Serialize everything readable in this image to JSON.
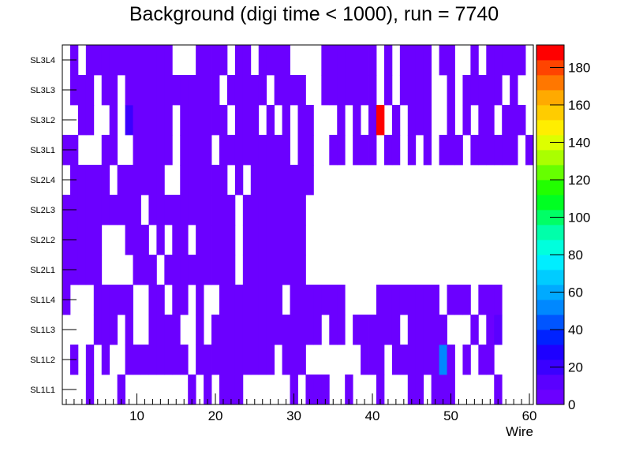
{
  "chart_data": {
    "type": "heatmap",
    "title": "Background (digi time < 1000), run = 7740",
    "xlabel": "Wire",
    "ylabel": "",
    "x_ticks": [
      10,
      20,
      30,
      40,
      50,
      60
    ],
    "xlim": [
      0.5,
      60.5
    ],
    "y_categories": [
      "SL1L1",
      "SL1L2",
      "SL1L3",
      "SL1L4",
      "SL2L1",
      "SL2L2",
      "SL2L3",
      "SL2L4",
      "SL3L1",
      "SL3L2",
      "SL3L3",
      "SL3L4"
    ],
    "z_ticks": [
      0,
      20,
      40,
      60,
      80,
      100,
      120,
      140,
      160,
      180
    ],
    "zlim": [
      0,
      192
    ],
    "palette": [
      "#6b00ff",
      "#5a00ff",
      "#3a00ff",
      "#1e00ff",
      "#0022ff",
      "#0055ff",
      "#0088ff",
      "#00aaff",
      "#00ccff",
      "#00eeff",
      "#00ffdd",
      "#00ffaa",
      "#00ff66",
      "#00ff22",
      "#22ff00",
      "#66ff00",
      "#aaff00",
      "#ddff00",
      "#ffee00",
      "#ffcc00",
      "#ffaa00",
      "#ff7700",
      "#ff4400",
      "#ff0000"
    ],
    "default_value": 2,
    "empty_value": 0,
    "highlights": [
      {
        "row": "SL3L2",
        "wire": 9,
        "value": 18
      },
      {
        "row": "SL3L2",
        "wire": 41,
        "value": 190
      },
      {
        "row": "SL1L2",
        "wire": 49,
        "value": 55
      },
      {
        "row": "SL1L3",
        "wire": 56,
        "value": 15
      }
    ],
    "rows": [
      {
        "label": "SL1L1",
        "empty": [
          1,
          2,
          3,
          5,
          6,
          7,
          9,
          10,
          11,
          12,
          13,
          14,
          15,
          16,
          18,
          20,
          24,
          25,
          26,
          27,
          28,
          29,
          31,
          35,
          36,
          38,
          39,
          40,
          42,
          43,
          44,
          47,
          51,
          52,
          53,
          54,
          55,
          57,
          58,
          59,
          60
        ]
      },
      {
        "label": "SL1L2",
        "empty": [
          1,
          3,
          5,
          7,
          8,
          17,
          28,
          32,
          33,
          34,
          35,
          36,
          37,
          38,
          42,
          51,
          53,
          56,
          57,
          58,
          59,
          60
        ]
      },
      {
        "label": "SL1L3",
        "empty": [
          1,
          2,
          3,
          4,
          8,
          10,
          11,
          16,
          17,
          19,
          34,
          37,
          44,
          50,
          51,
          52,
          54,
          57,
          58,
          59,
          60
        ]
      },
      {
        "label": "SL1L4",
        "empty": [
          2,
          3,
          4,
          10,
          11,
          14,
          17,
          19,
          20,
          29,
          37,
          38,
          39,
          40,
          49,
          53,
          57,
          58,
          59,
          60
        ]
      },
      {
        "label": "SL2L1",
        "empty": [
          6,
          7,
          8,
          9,
          13,
          23,
          32,
          33,
          34,
          35,
          36,
          37,
          38,
          39,
          40,
          41,
          42,
          43,
          44,
          45,
          46,
          47,
          48,
          49,
          50,
          51,
          52,
          53,
          54,
          55,
          56,
          57,
          58,
          59,
          60
        ]
      },
      {
        "label": "SL2L2",
        "empty": [
          6,
          7,
          8,
          12,
          14,
          17,
          23,
          32,
          33,
          34,
          35,
          36,
          37,
          38,
          39,
          40,
          41,
          42,
          43,
          44,
          45,
          46,
          47,
          48,
          49,
          50,
          51,
          52,
          53,
          54,
          55,
          56,
          57,
          58,
          59,
          60
        ]
      },
      {
        "label": "SL2L3",
        "empty": [
          11,
          23,
          32,
          33,
          34,
          35,
          36,
          37,
          38,
          39,
          40,
          41,
          42,
          43,
          44,
          45,
          46,
          47,
          48,
          49,
          50,
          51,
          52,
          53,
          54,
          55,
          56,
          57,
          58,
          59,
          60
        ]
      },
      {
        "label": "SL2L4",
        "empty": [
          1,
          7,
          14,
          15,
          22,
          24,
          33,
          34,
          35,
          36,
          37,
          38,
          39,
          40,
          41,
          42,
          43,
          44,
          45,
          46,
          47,
          48,
          49,
          50,
          51,
          52,
          53,
          54,
          55,
          56,
          57,
          58,
          59,
          60
        ]
      },
      {
        "label": "SL3L1",
        "empty": [
          3,
          4,
          5,
          8,
          9,
          15,
          20,
          30,
          33,
          34,
          37,
          41,
          44,
          46,
          48,
          52,
          59
        ]
      },
      {
        "label": "SL3L2",
        "empty": [
          1,
          2,
          5,
          6,
          8,
          15,
          22,
          26,
          28,
          30,
          33,
          34,
          35,
          37,
          39,
          42,
          44,
          48,
          49,
          51,
          53,
          56,
          60
        ]
      },
      {
        "label": "SL3L3",
        "empty": [
          1,
          5,
          8,
          21,
          27,
          32,
          33,
          41,
          43,
          48,
          49,
          51,
          57,
          59,
          60
        ]
      },
      {
        "label": "SL3L4",
        "empty": [
          1,
          3,
          15,
          16,
          17,
          22,
          25,
          30,
          31,
          32,
          33,
          41,
          43,
          48,
          51,
          52,
          54,
          60
        ]
      }
    ]
  }
}
